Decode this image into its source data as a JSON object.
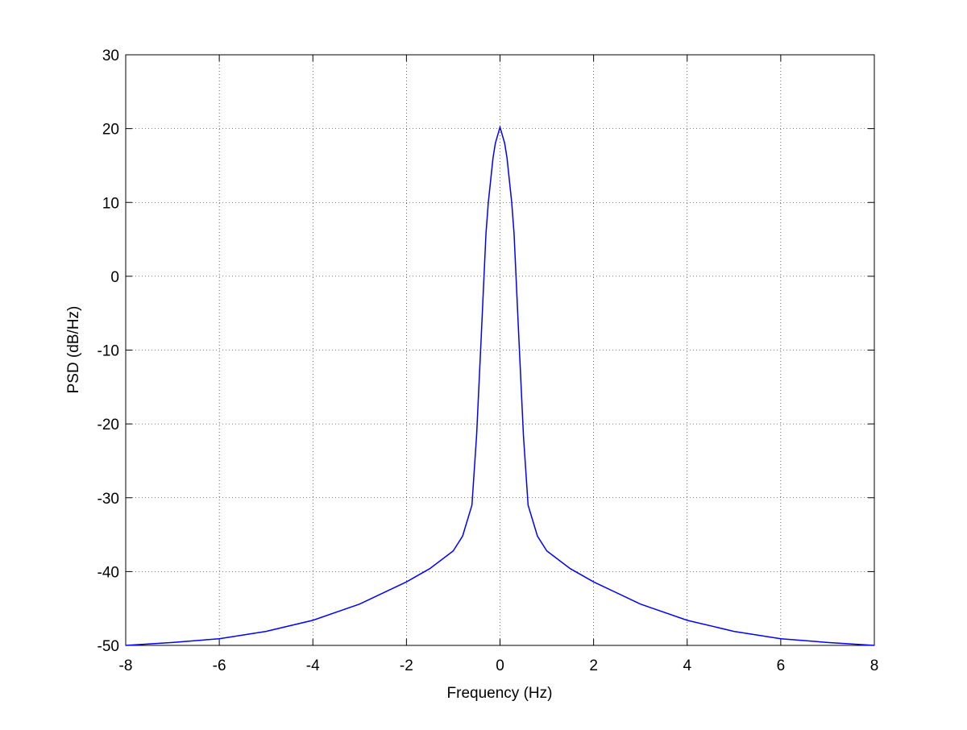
{
  "chart_data": {
    "type": "line",
    "xlabel": "Frequency (Hz)",
    "ylabel": "PSD (dB/Hz)",
    "x": [
      -8,
      -7,
      -6,
      -5,
      -4,
      -3,
      -2,
      -1.5,
      -1,
      -0.8,
      -0.6,
      -0.5,
      -0.4,
      -0.3,
      -0.25,
      -0.15,
      -0.1,
      0,
      0.1,
      0.15,
      0.25,
      0.3,
      0.4,
      0.5,
      0.6,
      0.8,
      1,
      1.5,
      2,
      3,
      4,
      5,
      6,
      7,
      8
    ],
    "series": [
      {
        "color": "#0000ff",
        "values": [
          -50,
          -49.6,
          -49.1,
          -48.1,
          -46.6,
          -44.4,
          -41.4,
          -39.6,
          -37.2,
          -35.2,
          -31,
          -21.5,
          -8,
          5.8,
          10,
          16,
          18,
          20.2,
          18,
          16,
          10,
          5.8,
          -8,
          -21.5,
          -31,
          -35.2,
          -37.2,
          -39.6,
          -41.4,
          -44.4,
          -46.6,
          -48.1,
          -49.1,
          -49.6,
          -50
        ]
      }
    ],
    "xlim": [
      -8,
      8
    ],
    "ylim": [
      -50,
      30
    ],
    "xticks": [
      -8,
      -6,
      -4,
      -2,
      0,
      2,
      4,
      6,
      8
    ],
    "yticks": [
      -50,
      -40,
      -30,
      -20,
      -10,
      0,
      10,
      20,
      30
    ],
    "grid": true
  }
}
